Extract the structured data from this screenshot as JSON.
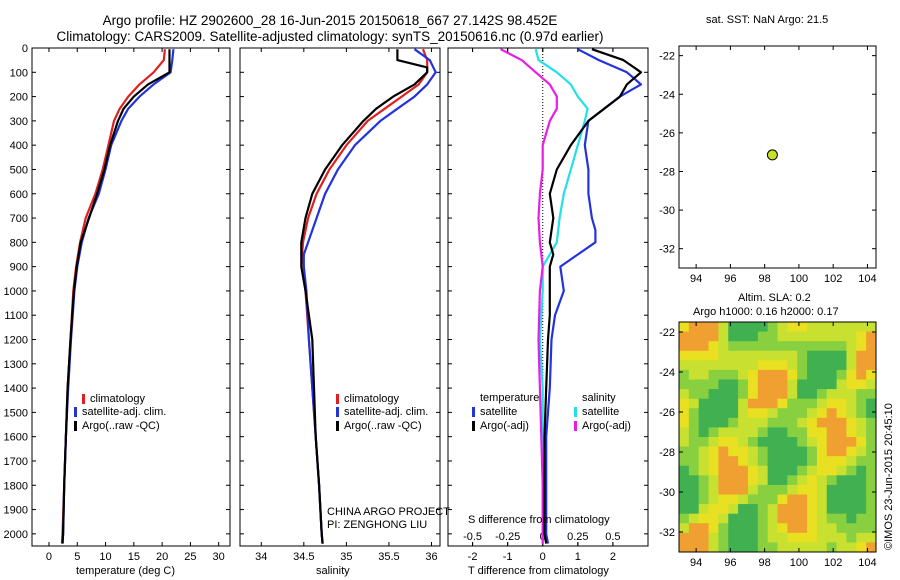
{
  "header": {
    "line1": "Argo profile: HZ 2902600_28 16-Jun-2015 20150618_667 27.142S 98.452E",
    "line2": "Climatology: CARS2009. Satellite-adjusted climatology: synTS_20150616.nc (0.97d earlier)"
  },
  "colors": {
    "climatology": "#e02020",
    "satellite": "#2233dd",
    "argo": "#000000",
    "argo_sal_diff": "#e81ee8",
    "sat_sal_diff": "#22e0e8",
    "float_marker": "#c8e020"
  },
  "panels": {
    "temperature": {
      "xlabel": "temperature (deg C)",
      "xticks": [
        "0",
        "5",
        "10",
        "15",
        "20",
        "25",
        "30"
      ]
    },
    "salinity": {
      "xlabel": "salinity",
      "xticks": [
        "34",
        "34.5",
        "35",
        "35.5",
        "36"
      ],
      "credit1": "CHINA ARGO PROJECT",
      "credit2": "PI: ZENGHONG LIU"
    },
    "difference": {
      "xlabel": "T difference from climatology",
      "s_label": "S difference from climatology",
      "t_ticks": [
        "-2",
        "-1",
        "0",
        "1",
        "2"
      ],
      "s_ticks": [
        "-0.5",
        "-0.25",
        "0",
        "0.25",
        "0.5"
      ]
    }
  },
  "y_axis": {
    "ticks": [
      "0",
      "100",
      "200",
      "300",
      "400",
      "500",
      "600",
      "700",
      "800",
      "900",
      "1000",
      "1100",
      "1200",
      "1300",
      "1400",
      "1500",
      "1600",
      "1700",
      "1800",
      "1900",
      "2000"
    ]
  },
  "legend_profiles": {
    "climatology": "climatology",
    "satellite": "satellite-adj. clim.",
    "argo": "Argo(..raw -QC)"
  },
  "legend_diff": {
    "temperature": "temperature",
    "salinity": "salinity",
    "t_sat": "satellite",
    "t_argo": "Argo(-adj)",
    "s_sat": "satellite",
    "s_argo": "Argo(-adj)"
  },
  "map_top": {
    "title": "sat. SST: NaN Argo: 21.5",
    "yticks": [
      "-22",
      "-24",
      "-26",
      "-28",
      "-30",
      "-32"
    ],
    "xticks": [
      "94",
      "96",
      "98",
      "100",
      "102",
      "104"
    ]
  },
  "map_bottom": {
    "title1": "Altim. SLA: 0.2",
    "title2": "Argo h1000: 0.16 h2000: 0.17",
    "yticks": [
      "-22",
      "-24",
      "-26",
      "-28",
      "-30",
      "-32"
    ],
    "xticks": [
      "94",
      "96",
      "98",
      "100",
      "102",
      "104"
    ]
  },
  "imos_credit": "©IMOS 23-Jun-2015 20:45:10",
  "chart_data": {
    "type": "line",
    "depth_axis": {
      "label": "",
      "ylim": [
        0,
        2050
      ],
      "inverted": true
    },
    "temperature": {
      "xlim": [
        -3,
        32
      ],
      "series": [
        {
          "name": "climatology",
          "depth": [
            5,
            50,
            100,
            150,
            200,
            250,
            300,
            400,
            500,
            600,
            700,
            800,
            900,
            1000,
            1200,
            1400,
            1600,
            1800,
            2000,
            2040
          ],
          "value": [
            20.5,
            20.3,
            18.5,
            16.0,
            14.0,
            12.5,
            11.5,
            10.5,
            9.5,
            8.2,
            6.5,
            5.5,
            4.8,
            4.3,
            3.8,
            3.3,
            3.0,
            2.7,
            2.4,
            2.3
          ]
        },
        {
          "name": "satellite-adj. clim.",
          "depth": [
            5,
            50,
            100,
            150,
            200,
            250,
            300,
            400,
            500,
            600,
            700,
            800,
            900,
            1000,
            1200,
            1400,
            1600,
            1800,
            2000,
            2040
          ],
          "value": [
            22.0,
            21.8,
            21.5,
            18.5,
            16.0,
            14.0,
            12.8,
            11.0,
            10.0,
            8.8,
            7.0,
            5.8,
            5.0,
            4.5,
            3.9,
            3.4,
            3.0,
            2.7,
            2.5,
            2.4
          ]
        },
        {
          "name": "Argo(..raw -QC)",
          "depth": [
            5,
            50,
            100,
            150,
            200,
            250,
            300,
            400,
            500,
            600,
            700,
            800,
            900,
            1000,
            1200,
            1400,
            1600,
            1800,
            2000,
            2040
          ],
          "value": [
            21.3,
            21.3,
            21.3,
            17.5,
            15.0,
            13.2,
            12.2,
            10.8,
            9.8,
            8.5,
            7.1,
            5.6,
            4.9,
            4.4,
            3.8,
            3.3,
            3.0,
            2.7,
            2.5,
            2.4
          ]
        }
      ]
    },
    "salinity": {
      "xlim": [
        33.75,
        36.1
      ],
      "series": [
        {
          "name": "climatology",
          "depth": [
            5,
            50,
            100,
            150,
            200,
            250,
            300,
            400,
            500,
            600,
            700,
            800,
            850,
            900,
            1000,
            1200,
            1400,
            1600,
            1800,
            2000,
            2040
          ],
          "value": [
            35.9,
            35.95,
            35.95,
            35.85,
            35.65,
            35.45,
            35.25,
            35.0,
            34.8,
            34.65,
            34.55,
            34.49,
            34.48,
            34.5,
            34.52,
            34.56,
            34.6,
            34.64,
            34.68,
            34.71,
            34.72
          ]
        },
        {
          "name": "satellite-adj. clim.",
          "depth": [
            5,
            50,
            100,
            150,
            200,
            250,
            300,
            400,
            500,
            600,
            700,
            800,
            850,
            900,
            1000,
            1200,
            1400,
            1600,
            1800,
            2000,
            2040
          ],
          "value": [
            35.8,
            35.98,
            36.05,
            35.95,
            35.8,
            35.6,
            35.4,
            35.1,
            34.9,
            34.75,
            34.65,
            34.55,
            34.5,
            34.5,
            34.53,
            34.56,
            34.6,
            34.64,
            34.68,
            34.71,
            34.72
          ]
        },
        {
          "name": "Argo(..raw -QC)",
          "depth": [
            5,
            50,
            80,
            100,
            150,
            200,
            250,
            300,
            400,
            500,
            600,
            700,
            800,
            900,
            1000,
            1200,
            1400,
            1600,
            1800,
            2000,
            2040
          ],
          "value": [
            35.6,
            35.6,
            35.95,
            35.95,
            35.8,
            35.55,
            35.35,
            35.2,
            34.95,
            34.75,
            34.6,
            34.52,
            34.47,
            34.47,
            34.52,
            34.6,
            34.62,
            34.64,
            34.68,
            34.71,
            34.72
          ]
        }
      ]
    },
    "difference": {
      "t_xlim": [
        -2.7,
        3.0
      ],
      "s_xlim": [
        -0.675,
        0.75
      ],
      "t_series": [
        {
          "name": "satellite",
          "depth": [
            5,
            50,
            100,
            150,
            200,
            300,
            400,
            500,
            600,
            700,
            750,
            800,
            850,
            900,
            1000,
            1100,
            1200,
            1400,
            1600,
            1800,
            2000,
            2040
          ],
          "value": [
            1.0,
            1.6,
            2.4,
            2.8,
            2.2,
            1.3,
            1.2,
            1.3,
            1.3,
            1.4,
            1.5,
            1.5,
            1.0,
            0.5,
            0.6,
            0.35,
            0.25,
            0.2,
            0.1,
            0.1,
            0.1,
            0.15
          ]
        },
        {
          "name": "Argo(-adj)",
          "depth": [
            5,
            50,
            100,
            150,
            200,
            300,
            400,
            500,
            600,
            700,
            800,
            850,
            900,
            1000,
            1100,
            1200,
            1400,
            1600,
            1800,
            2000,
            2040
          ],
          "value": [
            1.4,
            2.3,
            2.8,
            2.4,
            2.2,
            1.3,
            0.8,
            0.4,
            0.2,
            0.3,
            0.2,
            0.3,
            0.2,
            0.2,
            0.2,
            0.15,
            0.1,
            0.05,
            0.05,
            0.05,
            0.1
          ]
        }
      ],
      "s_series": [
        {
          "name": "satellite",
          "depth": [
            5,
            50,
            100,
            150,
            200,
            250,
            300,
            400,
            500,
            600,
            700,
            800,
            850,
            900,
            1000,
            1200,
            1400,
            1600,
            1800,
            2000,
            2040
          ],
          "value": [
            -0.05,
            -0.03,
            0.1,
            0.2,
            0.25,
            0.32,
            0.3,
            0.25,
            0.2,
            0.15,
            0.12,
            0.1,
            0.05,
            0.0,
            0.0,
            -0.02,
            0.0,
            0.0,
            0.0,
            0.0,
            0.0
          ]
        },
        {
          "name": "Argo(-adj)",
          "depth": [
            5,
            50,
            100,
            150,
            200,
            250,
            300,
            400,
            500,
            600,
            700,
            800,
            900,
            1000,
            1200,
            1400,
            1600,
            1800,
            2000,
            2040
          ],
          "value": [
            -0.3,
            -0.15,
            -0.05,
            0.05,
            0.1,
            0.1,
            0.05,
            0.0,
            0.0,
            -0.02,
            -0.03,
            -0.02,
            0.0,
            -0.02,
            -0.03,
            -0.02,
            -0.01,
            0.0,
            0.0,
            0.0
          ]
        }
      ]
    },
    "map_sst": {
      "xlim": [
        93,
        104.5
      ],
      "ylim": [
        -33,
        -21.5
      ],
      "float": {
        "lon": 98.452,
        "lat": -27.142
      }
    }
  }
}
